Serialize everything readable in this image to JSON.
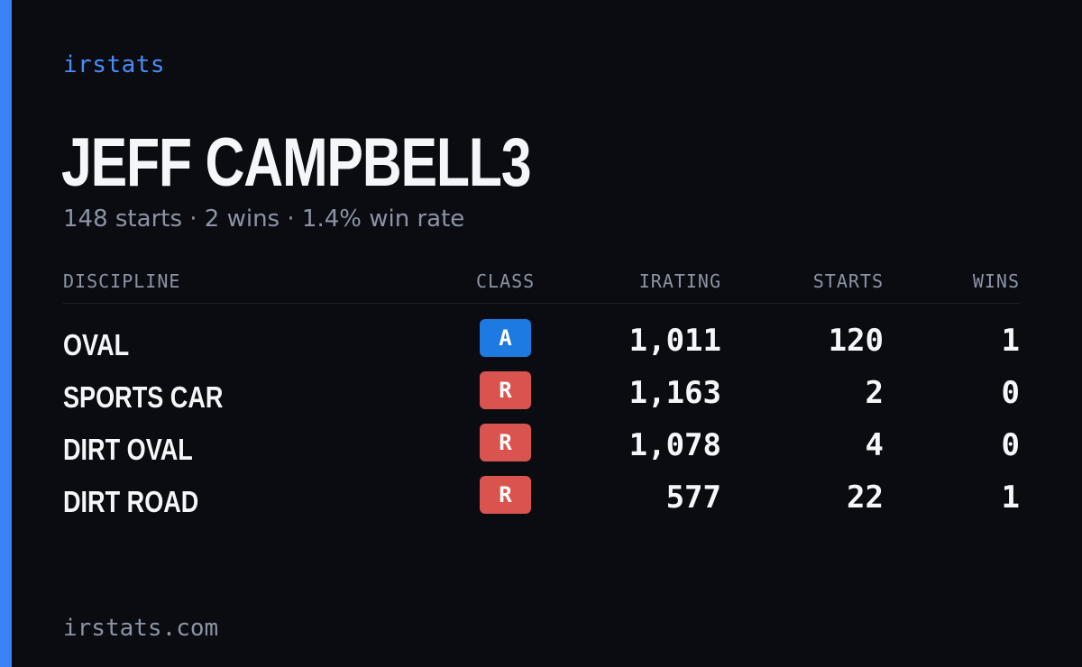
{
  "brand": "irstats",
  "driver": {
    "name": "JEFF CAMPBELL3",
    "summary": "148 starts · 2 wins · 1.4% win rate"
  },
  "table": {
    "headers": {
      "discipline": "DISCIPLINE",
      "class": "CLASS",
      "irating": "IRATING",
      "starts": "STARTS",
      "wins": "WINS"
    },
    "rows": [
      {
        "discipline": "OVAL",
        "class": "A",
        "class_color": "#1d7ae0",
        "irating": "1,011",
        "starts": "120",
        "wins": "1"
      },
      {
        "discipline": "SPORTS CAR",
        "class": "R",
        "class_color": "#d9534f",
        "irating": "1,163",
        "starts": "2",
        "wins": "0"
      },
      {
        "discipline": "DIRT OVAL",
        "class": "R",
        "class_color": "#d9534f",
        "irating": "1,078",
        "starts": "4",
        "wins": "0"
      },
      {
        "discipline": "DIRT ROAD",
        "class": "R",
        "class_color": "#d9534f",
        "irating": "577",
        "starts": "22",
        "wins": "1"
      }
    ]
  },
  "footer": {
    "domain": "irstats.com"
  },
  "colors": {
    "accent": "#3b82f6",
    "brand_text": "#4a8cf7",
    "background": "#0a0c12",
    "muted_text": "#8c93a3"
  }
}
